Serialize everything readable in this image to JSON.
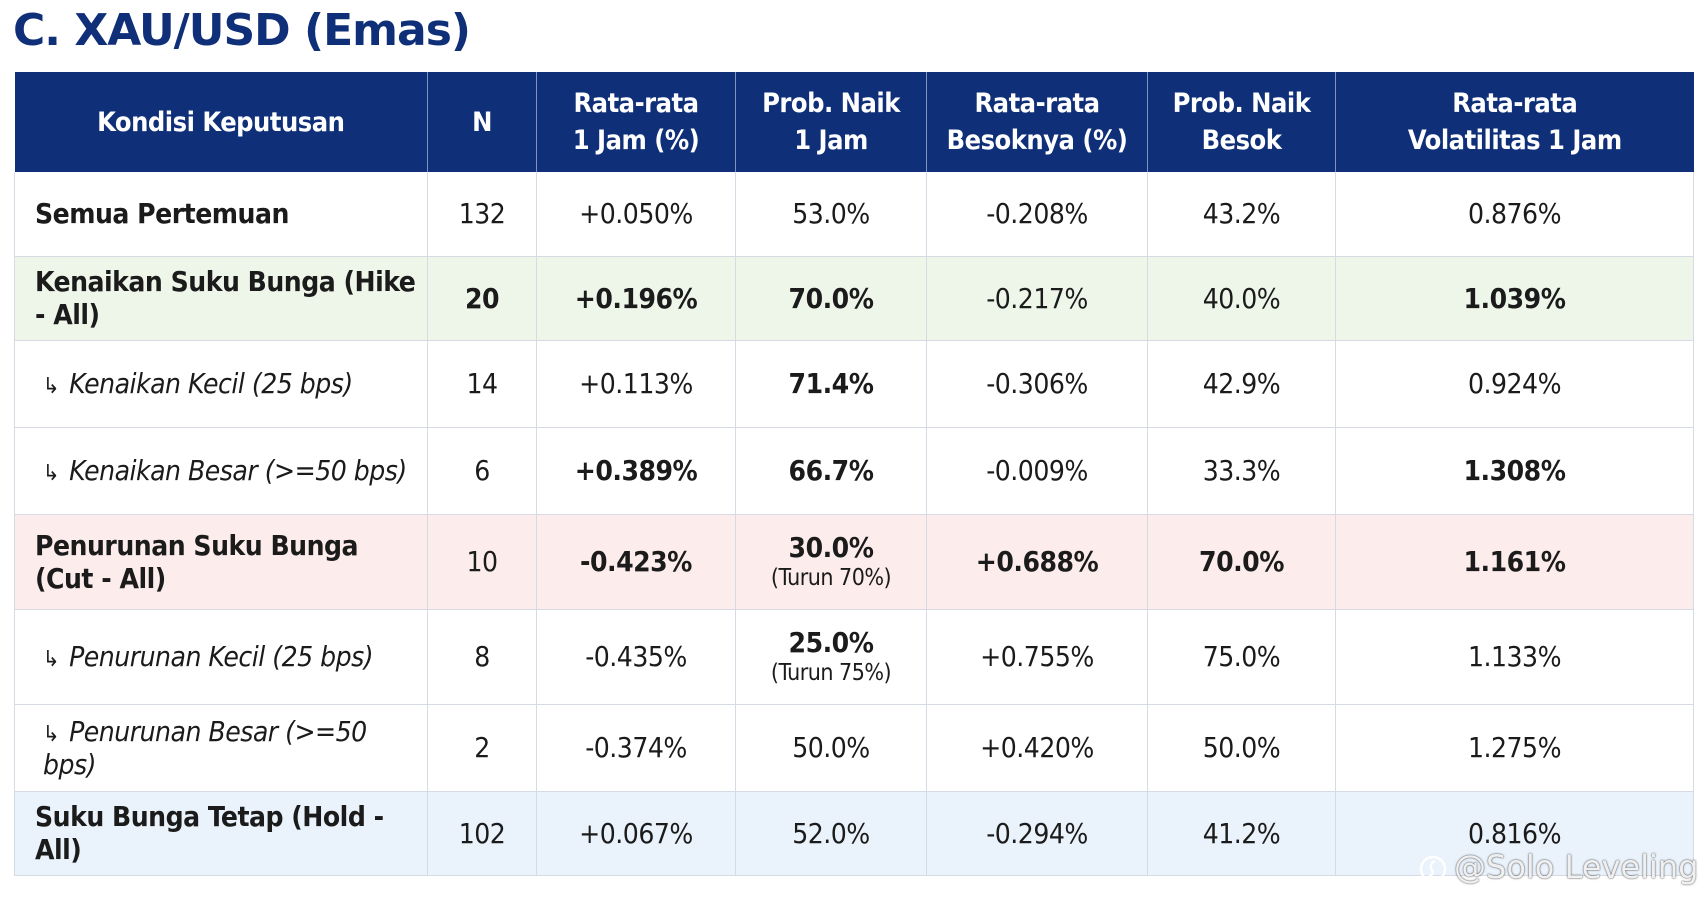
{
  "title": "C. XAU/USD (Emas)",
  "columns": [
    [
      "Kondisi Keputusan",
      ""
    ],
    [
      "N",
      ""
    ],
    [
      "Rata-rata",
      "1 Jam (%)"
    ],
    [
      "Prob. Naik",
      "1 Jam"
    ],
    [
      "Rata-rata",
      "Besoknya (%)"
    ],
    [
      "Prob. Naik",
      "Besok"
    ],
    [
      "Rata-rata",
      "Volatilitas 1 Jam"
    ]
  ],
  "rows": [
    {
      "label": "Semua Pertemuan",
      "n": "132",
      "avg1h": "+0.050%",
      "prob1h": "53.0%",
      "avgNext": "-0.208%",
      "probNext": "43.2%",
      "vol": "0.876%"
    },
    {
      "label": "Kenaikan Suku Bunga (Hike - All)",
      "n": "20",
      "avg1h": "+0.196%",
      "prob1h": "70.0%",
      "avgNext": "-0.217%",
      "probNext": "40.0%",
      "vol": "1.039%"
    },
    {
      "label": "Kenaikan Kecil (25 bps)",
      "n": "14",
      "avg1h": "+0.113%",
      "prob1h": "71.4%",
      "avgNext": "-0.306%",
      "probNext": "42.9%",
      "vol": "0.924%"
    },
    {
      "label": "Kenaikan Besar (>=50 bps)",
      "n": "6",
      "avg1h": "+0.389%",
      "prob1h": "66.7%",
      "avgNext": "-0.009%",
      "probNext": "33.3%",
      "vol": "1.308%"
    },
    {
      "label": "Penurunan Suku Bunga (Cut - All)",
      "n": "10",
      "avg1h": "-0.423%",
      "prob1h": "30.0%",
      "prob1hNote": "(Turun 70%)",
      "avgNext": "+0.688%",
      "probNext": "70.0%",
      "vol": "1.161%"
    },
    {
      "label": "Penurunan Kecil (25 bps)",
      "n": "8",
      "avg1h": "-0.435%",
      "prob1h": "25.0%",
      "prob1hNote": "(Turun 75%)",
      "avgNext": "+0.755%",
      "probNext": "75.0%",
      "vol": "1.133%"
    },
    {
      "label": "Penurunan Besar (>=50 bps)",
      "n": "2",
      "avg1h": "-0.374%",
      "prob1h": "50.0%",
      "avgNext": "+0.420%",
      "probNext": "50.0%",
      "vol": "1.275%"
    },
    {
      "label": "Suku Bunga Tetap (Hold - All)",
      "n": "102",
      "avg1h": "+0.067%",
      "prob1h": "52.0%",
      "avgNext": "-0.294%",
      "probNext": "41.2%",
      "vol": "0.816%"
    }
  ],
  "sub_arrow": "↳",
  "watermark": "@Solo Leveling",
  "colors": {
    "header": "#0f2f78",
    "positive": "#1e7a1e",
    "negative": "#d61a1a",
    "hike_row": "#eef6ea",
    "cut_row": "#fcecec",
    "hold_row": "#eaf2fb"
  }
}
